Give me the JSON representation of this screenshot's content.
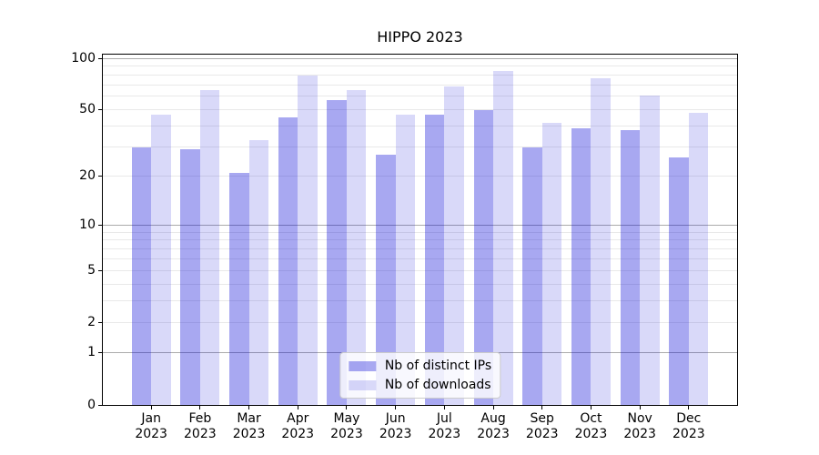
{
  "title": "HIPPO 2023",
  "chart_data": {
    "type": "bar",
    "title": "HIPPO 2023",
    "months": [
      "Jan",
      "Feb",
      "Mar",
      "Apr",
      "May",
      "Jun",
      "Jul",
      "Aug",
      "Sep",
      "Oct",
      "Nov",
      "Dec"
    ],
    "year": "2023",
    "categories": [
      "Jan 2023",
      "Feb 2023",
      "Mar 2023",
      "Apr 2023",
      "May 2023",
      "Jun 2023",
      "Jul 2023",
      "Aug 2023",
      "Sep 2023",
      "Oct 2023",
      "Nov 2023",
      "Dec 2023"
    ],
    "series": [
      {
        "name": "Nb of distinct IPs",
        "color": "rgba(0,0,215,0.34)",
        "color_hex": "#a8a8ee",
        "values": [
          30,
          29,
          21,
          45,
          57,
          27,
          47,
          50,
          30,
          39,
          38,
          26
        ]
      },
      {
        "name": "Nb of downloads",
        "color": "rgba(0,0,215,0.15)",
        "color_hex": "#d9d9f9",
        "values": [
          47,
          65,
          33,
          80,
          65,
          47,
          69,
          85,
          42,
          77,
          61,
          48
        ]
      }
    ],
    "xlabel": "",
    "ylabel": "",
    "yscale": "symlog",
    "yticks": [
      0,
      1,
      2,
      5,
      10,
      20,
      50,
      100
    ],
    "ylim": [
      0,
      105
    ],
    "grid": "horizontal minor+major",
    "legend_position": "lower center"
  }
}
